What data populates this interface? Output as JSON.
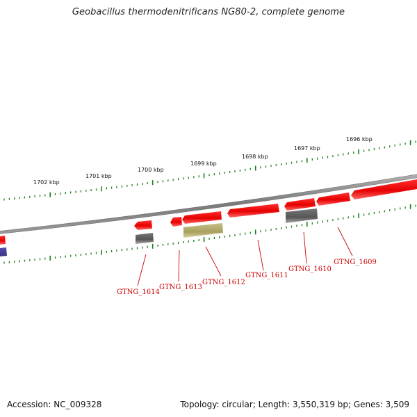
{
  "title": "Geobacillus thermodenitrificans NG80-2, complete genome",
  "footer": {
    "accession": "Accession: NC_009328",
    "stats": "Topology: circular; Length: 3,550,319 bp; Genes: 3,509"
  },
  "colors": {
    "forward_gene": "#ee0000",
    "reverse_gene": "#ff2020",
    "rna_gene": "#666666",
    "feature_olive": "#b8b070",
    "feature_purple": "#4a3f9a",
    "backbone": "#8a8a8a",
    "tick": "#1a7f1a",
    "gene_label": "#cc0000"
  },
  "scale_labels": [
    "1702 kbp",
    "1701 kbp",
    "1700 kbp",
    "1699 kbp",
    "1698 kbp",
    "1697 kbp",
    "1696 kbp"
  ],
  "gene_labels": [
    "GTNG_1614",
    "GTNG_1613",
    "GTNG_1612",
    "GTNG_1611",
    "GTNG_1610",
    "GTNG_1609"
  ]
}
